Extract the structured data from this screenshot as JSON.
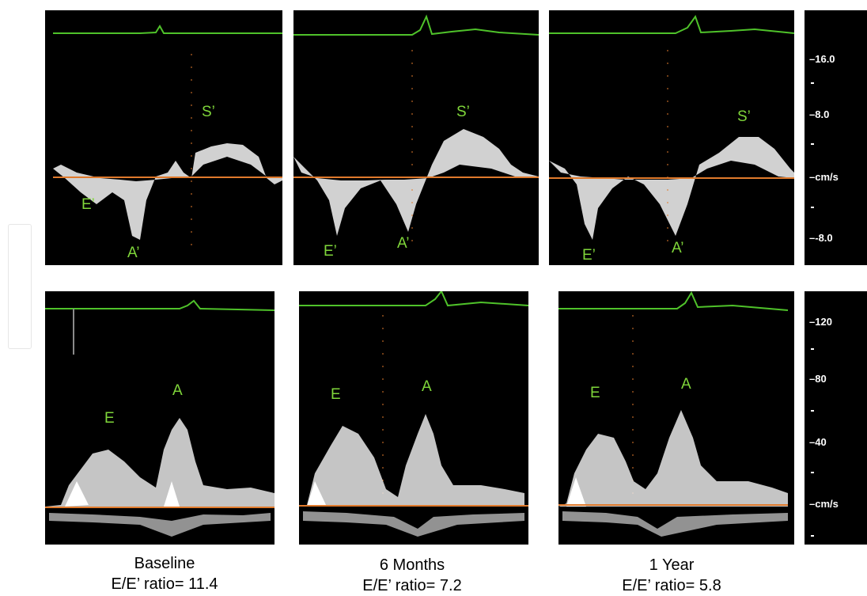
{
  "panels": [
    {
      "title": "Baseline",
      "ratio_text": "E/E’ ratio= 11.4"
    },
    {
      "title": "6 Months",
      "ratio_text": "E/E’ ratio= 7.2"
    },
    {
      "title": "1 Year",
      "ratio_text": "E/E’ ratio= 5.8"
    }
  ],
  "tissue_labels": {
    "s": "S’",
    "e": "E’",
    "a": "A’"
  },
  "mitral_labels": {
    "e": "E",
    "a": "A"
  },
  "top_scale": [
    "16.0",
    "8.0",
    "cm/s",
    "-8.0"
  ],
  "bottom_scale": [
    "120",
    "80",
    "40",
    "cm/s"
  ],
  "colors": {
    "background": "#000000",
    "ecg_trace": "#4fc22a",
    "baseline": "#e07a2c",
    "label": "#7fd63a",
    "doppler_signal": "#e8e8e8"
  }
}
